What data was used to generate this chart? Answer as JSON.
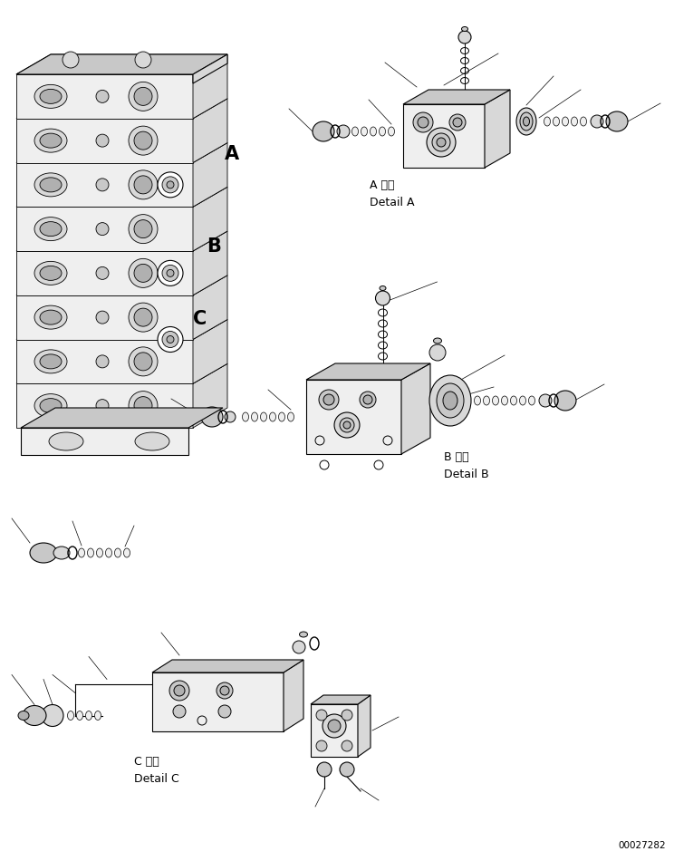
{
  "background_color": "#ffffff",
  "line_color": "#000000",
  "fig_width": 7.44,
  "fig_height": 9.5,
  "dpi": 100,
  "label_A_detail": "A 詳細\nDetail A",
  "label_B_detail": "B 詳細\nDetail B",
  "label_C_detail": "C 詳細\nDetail C",
  "watermark": "00027282",
  "font_size": 8,
  "lw_main": 0.8,
  "lw_thin": 0.5,
  "lw_thick": 1.2,
  "gray_fill": "#d8d8d8",
  "gray_dark": "#b0b0b0",
  "gray_light": "#efefef",
  "gray_mid": "#c8c8c8"
}
